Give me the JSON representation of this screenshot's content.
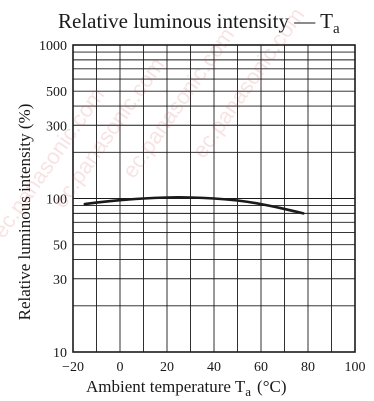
{
  "chart_data": {
    "type": "line",
    "title": "Relative luminous intensity — T",
    "title_subscript": "a",
    "xlabel": "Ambient temperature  T",
    "xlabel_subscript": "a",
    "xlabel_unit": "(°C)",
    "ylabel": "Relative luminous intensity  (%)",
    "x_ticks": [
      "−20",
      "0",
      "20",
      "40",
      "60",
      "80",
      "100"
    ],
    "y_ticks": [
      "10",
      "30",
      "50",
      "100",
      "300",
      "500",
      "1000"
    ],
    "xlim": [
      -20,
      100
    ],
    "ylim": [
      10,
      1000
    ],
    "y_scale": "log",
    "grid": true,
    "series": [
      {
        "x": [
          -15,
          -5,
          5,
          15,
          25,
          35,
          45,
          55,
          65,
          72,
          78
        ],
        "values": [
          92,
          96,
          99,
          101,
          102,
          101,
          99,
          95,
          89,
          84,
          80
        ]
      }
    ],
    "line_color": "#1a1a1a"
  },
  "watermark": {
    "texts": [
      "ec.panasonic.com",
      "ec.panasonic.com",
      "ec.panasonic.com",
      "ec.panasonic.com"
    ],
    "color": "#d65050"
  }
}
